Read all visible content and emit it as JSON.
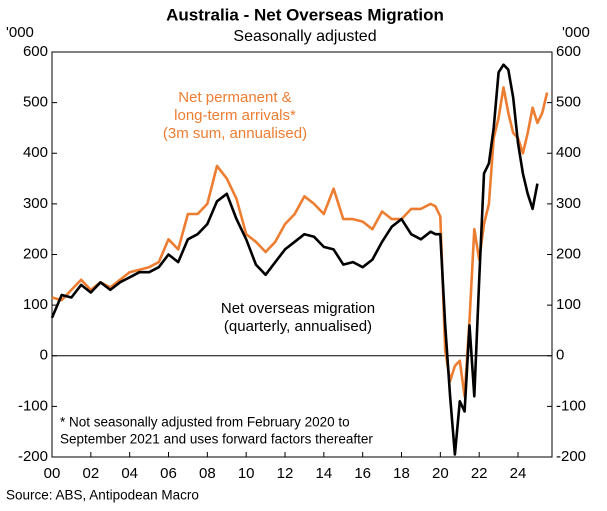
{
  "chart_data": {
    "type": "line",
    "title": "Australia - Net Overseas Migration",
    "subtitle": "Seasonally adjusted",
    "y_unit_left": "'000",
    "y_unit_right": "'000",
    "x": [
      2000,
      2000.5,
      2001,
      2001.5,
      2002,
      2002.5,
      2003,
      2003.5,
      2004,
      2004.5,
      2005,
      2005.5,
      2006,
      2006.5,
      2007,
      2007.5,
      2008,
      2008.5,
      2009,
      2009.5,
      2010,
      2010.5,
      2011,
      2011.5,
      2012,
      2012.5,
      2013,
      2013.5,
      2014,
      2014.5,
      2015,
      2015.5,
      2016,
      2016.5,
      2017,
      2017.5,
      2018,
      2018.5,
      2019,
      2019.5,
      2019.75,
      2020,
      2020.25,
      2020.5,
      2020.75,
      2021,
      2021.25,
      2021.5,
      2021.75,
      2022,
      2022.25,
      2022.5,
      2022.75,
      2023,
      2023.25,
      2023.5,
      2023.75,
      2024,
      2024.25,
      2024.5,
      2024.75,
      2025,
      2025.25,
      2025.5
    ],
    "series": [
      {
        "label_lines": [
          "Net permanent &",
          "long-term arrivals*",
          "(3m sum, annualised)"
        ],
        "color": "#ed7d31",
        "values": [
          115,
          110,
          130,
          150,
          130,
          145,
          135,
          150,
          165,
          170,
          175,
          185,
          230,
          210,
          280,
          280,
          300,
          375,
          350,
          310,
          240,
          225,
          205,
          225,
          260,
          280,
          315,
          300,
          280,
          330,
          270,
          270,
          265,
          250,
          285,
          270,
          270,
          290,
          290,
          300,
          295,
          275,
          10,
          -50,
          -20,
          -10,
          -80,
          70,
          250,
          190,
          260,
          300,
          430,
          470,
          530,
          480,
          440,
          430,
          400,
          440,
          490,
          460,
          480,
          520
        ]
      },
      {
        "label_lines": [
          "Net overseas migration",
          "(quarterly, annualised)"
        ],
        "color": "#000000",
        "values": [
          75,
          120,
          115,
          140,
          125,
          145,
          130,
          145,
          155,
          165,
          165,
          175,
          200,
          185,
          230,
          240,
          260,
          305,
          320,
          270,
          230,
          180,
          160,
          185,
          210,
          225,
          240,
          235,
          215,
          210,
          180,
          185,
          175,
          190,
          225,
          255,
          270,
          240,
          230,
          245,
          240,
          240,
          60,
          -80,
          -195,
          -90,
          -110,
          60,
          -80,
          150,
          360,
          380,
          450,
          560,
          575,
          565,
          510,
          420,
          360,
          320,
          290,
          340,
          null,
          null
        ]
      }
    ],
    "xlim": [
      2000,
      2025.75
    ],
    "xticks": [
      {
        "value": 2000,
        "label": "00"
      },
      {
        "value": 2002,
        "label": "02"
      },
      {
        "value": 2004,
        "label": "04"
      },
      {
        "value": 2006,
        "label": "06"
      },
      {
        "value": 2008,
        "label": "08"
      },
      {
        "value": 2010,
        "label": "10"
      },
      {
        "value": 2012,
        "label": "12"
      },
      {
        "value": 2014,
        "label": "14"
      },
      {
        "value": 2016,
        "label": "16"
      },
      {
        "value": 2018,
        "label": "18"
      },
      {
        "value": 2020,
        "label": "20"
      },
      {
        "value": 2022,
        "label": "22"
      },
      {
        "value": 2024,
        "label": "24"
      }
    ],
    "ylim": [
      -200,
      600
    ],
    "yticks": [
      -200,
      -100,
      0,
      100,
      200,
      300,
      400,
      500,
      600
    ],
    "y2lim": [
      -200,
      600
    ],
    "y2ticks": [
      -200,
      -100,
      0,
      100,
      200,
      300,
      400,
      500,
      600
    ],
    "footnote": [
      "* Not seasonally adjusted from February 2020 to",
      "September 2021 and uses forward factors thereafter"
    ],
    "source": "Source: ABS, Antipodean Macro"
  }
}
